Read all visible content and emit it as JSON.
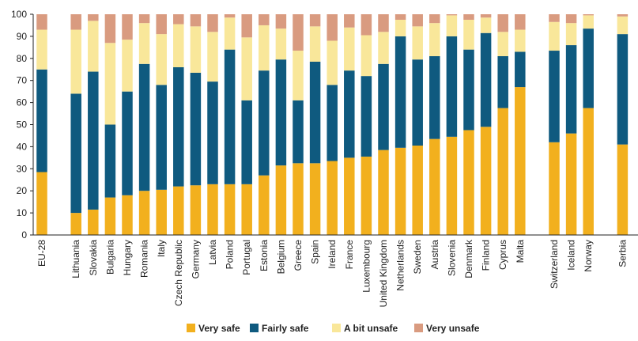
{
  "chart_data": {
    "type": "bar",
    "stacked": true,
    "title": "",
    "xlabel": "",
    "ylabel": "",
    "ylim": [
      0,
      100
    ],
    "yticks": [
      0,
      10,
      20,
      30,
      40,
      50,
      60,
      70,
      80,
      90,
      100
    ],
    "grid": false,
    "legend_position": "bottom",
    "colors": {
      "very_safe": "#f2b01e",
      "fairly_safe": "#0f5a7f",
      "a_bit_unsafe": "#f9e79a",
      "very_unsafe": "#d99b80",
      "axis": "#222222"
    },
    "groups": [
      {
        "categories": [
          "EU-28"
        ]
      },
      {
        "categories": [
          "Lithuania",
          "Slovakia",
          "Bulgaria",
          "Hungary",
          "Romania",
          "Italy",
          "Czech Republic",
          "Germany",
          "Latvia",
          "Poland",
          "Portugal",
          "Estonia",
          "Belgium",
          "Greece",
          "Spain",
          "Ireland",
          "France",
          "Luxembourg",
          "United Kingdom",
          "Netherlands",
          "Sweden",
          "Austria",
          "Slovenia",
          "Denmark",
          "Finland",
          "Cyprus",
          "Malta"
        ]
      },
      {
        "categories": [
          "Switzerland",
          "Iceland",
          "Norway"
        ]
      },
      {
        "categories": [
          "Serbia"
        ]
      }
    ],
    "categories": [
      "EU-28",
      "Lithuania",
      "Slovakia",
      "Bulgaria",
      "Hungary",
      "Romania",
      "Italy",
      "Czech Republic",
      "Germany",
      "Latvia",
      "Poland",
      "Portugal",
      "Estonia",
      "Belgium",
      "Greece",
      "Spain",
      "Ireland",
      "France",
      "Luxembourg",
      "United Kingdom",
      "Netherlands",
      "Sweden",
      "Austria",
      "Slovenia",
      "Denmark",
      "Finland",
      "Cyprus",
      "Malta",
      "Switzerland",
      "Iceland",
      "Norway",
      "Serbia"
    ],
    "series": [
      {
        "name": "Very safe",
        "key": "very_safe",
        "values": [
          28.5,
          10,
          11.5,
          17,
          18,
          20,
          20.5,
          22,
          22.5,
          23,
          23,
          23,
          27,
          31.5,
          32.5,
          32.5,
          33.5,
          35,
          35.5,
          38.5,
          39.5,
          40.5,
          43.5,
          44.5,
          47.5,
          49,
          57.5,
          67,
          42,
          46,
          57.5,
          41
        ]
      },
      {
        "name": "Fairly safe",
        "key": "fairly_safe",
        "values": [
          46.5,
          54,
          62.5,
          33,
          47,
          57.5,
          47.5,
          54,
          51,
          46.5,
          61,
          38,
          47.5,
          48,
          28.5,
          46,
          34.5,
          39.5,
          36.5,
          39,
          50.5,
          39,
          37.5,
          45.5,
          36.5,
          42.5,
          23.5,
          16,
          41.5,
          40,
          36,
          50
        ]
      },
      {
        "name": "A bit unsafe",
        "key": "a_bit_unsafe",
        "values": [
          18,
          29,
          23,
          37,
          23.5,
          18.5,
          23,
          19.5,
          21,
          22.5,
          14.5,
          28.5,
          20.5,
          14,
          22.5,
          16,
          20,
          19.5,
          18.5,
          14.5,
          7.5,
          15,
          15,
          9.5,
          13.5,
          7,
          11,
          10,
          13,
          10,
          6,
          8
        ]
      },
      {
        "name": "Very unsafe",
        "key": "very_unsafe",
        "values": [
          7,
          7,
          3,
          13,
          11.5,
          4,
          9,
          4.5,
          5.5,
          8,
          1.5,
          10.5,
          5,
          6.5,
          16.5,
          5.5,
          12,
          6,
          9.5,
          8,
          2.5,
          5.5,
          4,
          0.5,
          2.5,
          1.5,
          8,
          7,
          3.5,
          4,
          0.5,
          1
        ]
      }
    ]
  }
}
